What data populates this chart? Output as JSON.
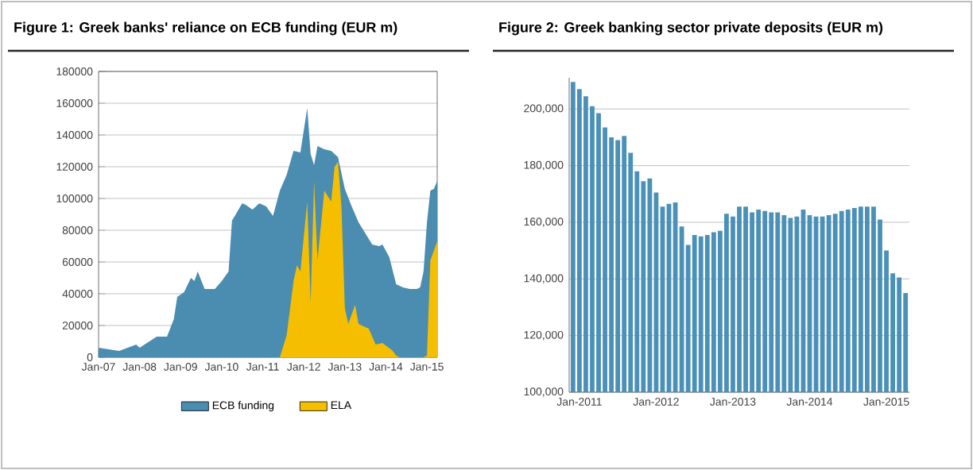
{
  "chart_data": [
    {
      "type": "area",
      "title": "Figure 1: Greek banks' reliance on ECB funding (EUR m)",
      "legend": "bottom",
      "grid": "y",
      "xlim": [
        "2007-01",
        "2015-04"
      ],
      "xticks": [
        {
          "value": "2007-01",
          "label": "Jan-07"
        },
        {
          "value": "2008-01",
          "label": "Jan-08"
        },
        {
          "value": "2009-01",
          "label": "Jan-09"
        },
        {
          "value": "2010-01",
          "label": "Jan-10"
        },
        {
          "value": "2011-01",
          "label": "Jan-11"
        },
        {
          "value": "2012-01",
          "label": "Jan-12"
        },
        {
          "value": "2013-01",
          "label": "Jan-13"
        },
        {
          "value": "2014-01",
          "label": "Jan-14"
        },
        {
          "value": "2015-01",
          "label": "Jan-15"
        }
      ],
      "ylim": [
        0,
        180000
      ],
      "yticks": [
        0,
        20000,
        40000,
        60000,
        80000,
        100000,
        120000,
        140000,
        160000,
        180000
      ],
      "series": [
        {
          "name": "ECB funding",
          "color": "#4a8db0",
          "x": [
            "2007-01",
            "2007-07",
            "2007-12",
            "2008-01",
            "2008-06",
            "2008-09",
            "2008-11",
            "2008-12",
            "2009-02",
            "2009-04",
            "2009-05",
            "2009-06",
            "2009-08",
            "2009-11",
            "2010-01",
            "2010-03",
            "2010-04",
            "2010-07",
            "2010-08",
            "2010-10",
            "2010-12",
            "2011-02",
            "2011-04",
            "2011-06",
            "2011-08",
            "2011-10",
            "2011-12",
            "2012-02",
            "2012-03",
            "2012-04",
            "2012-05",
            "2012-07",
            "2012-09",
            "2012-11",
            "2013-01",
            "2013-03",
            "2013-05",
            "2013-07",
            "2013-09",
            "2013-11",
            "2013-12",
            "2014-02",
            "2014-04",
            "2014-06",
            "2014-08",
            "2014-10",
            "2014-11",
            "2014-12",
            "2015-01",
            "2015-02",
            "2015-03",
            "2015-04"
          ],
          "values": [
            6000,
            4000,
            8000,
            6000,
            13000,
            13000,
            24000,
            38000,
            41000,
            50000,
            48000,
            54000,
            43000,
            43000,
            48000,
            54000,
            86000,
            97000,
            96000,
            93000,
            97000,
            95000,
            89000,
            105000,
            115000,
            130000,
            129000,
            157000,
            128000,
            121000,
            133000,
            131000,
            130000,
            126000,
            106000,
            95000,
            85000,
            78000,
            71000,
            70000,
            71000,
            63000,
            46000,
            44000,
            43000,
            43000,
            44000,
            54000,
            85000,
            105000,
            106000,
            111000
          ]
        },
        {
          "name": "ELA",
          "color": "#f5bf00",
          "x": [
            "2007-01",
            "2011-06",
            "2011-08",
            "2011-10",
            "2011-11",
            "2011-12",
            "2012-02",
            "2012-03",
            "2012-04",
            "2012-05",
            "2012-07",
            "2012-09",
            "2012-10",
            "2012-11",
            "2012-12",
            "2013-01",
            "2013-02",
            "2013-04",
            "2013-05",
            "2013-08",
            "2013-10",
            "2013-12",
            "2014-03",
            "2014-04",
            "2014-05",
            "2014-12",
            "2015-01",
            "2015-02",
            "2015-03",
            "2015-04"
          ],
          "values": [
            0,
            0,
            14000,
            48000,
            58000,
            54000,
            98000,
            34000,
            111000,
            61000,
            105000,
            98000,
            120000,
            123000,
            95000,
            31000,
            21000,
            33000,
            21000,
            18000,
            8000,
            9000,
            4000,
            1000,
            0,
            0,
            1000,
            61000,
            67000,
            73000
          ]
        }
      ]
    },
    {
      "type": "bar",
      "title": "Figure 2: Greek banking sector private deposits (EUR m)",
      "grid": "y",
      "color": "#4a90b8",
      "categories": [
        null,
        "Jan-2011",
        null,
        null,
        null,
        null,
        null,
        null,
        null,
        null,
        null,
        null,
        null,
        "Jan-2012",
        null,
        null,
        null,
        null,
        null,
        null,
        null,
        null,
        null,
        null,
        null,
        "Jan-2013",
        null,
        null,
        null,
        null,
        null,
        null,
        null,
        null,
        null,
        null,
        null,
        "Jan-2014",
        null,
        null,
        null,
        null,
        null,
        null,
        null,
        null,
        null,
        null,
        null,
        "Jan-2015",
        null,
        null,
        null
      ],
      "values": [
        209500,
        207000,
        204500,
        201000,
        198500,
        193500,
        190000,
        189000,
        190500,
        184500,
        178000,
        174500,
        175500,
        170500,
        165500,
        166500,
        167000,
        158500,
        152000,
        155500,
        155000,
        155500,
        156500,
        157000,
        163000,
        162000,
        165500,
        165500,
        163500,
        164500,
        164000,
        163500,
        163500,
        162500,
        161500,
        162000,
        164500,
        162500,
        162000,
        162000,
        162500,
        163000,
        164000,
        164500,
        165000,
        165500,
        165500,
        165500,
        161000,
        150000,
        142000,
        140500,
        135000
      ],
      "ylim": [
        100000,
        211000
      ],
      "yticks": [
        {
          "value": 100000,
          "label": "100,000"
        },
        {
          "value": 120000,
          "label": "120,000"
        },
        {
          "value": 140000,
          "label": "140,000"
        },
        {
          "value": 160000,
          "label": "160,000"
        },
        {
          "value": 180000,
          "label": "180,000"
        },
        {
          "value": 200000,
          "label": "200,000"
        }
      ]
    }
  ]
}
